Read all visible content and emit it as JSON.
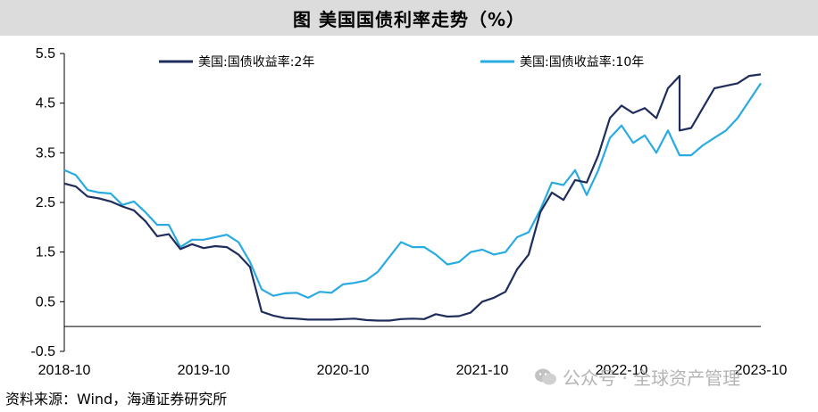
{
  "header": {
    "title": "图  美国国债利率走势（%）"
  },
  "footer": {
    "source": "资料来源：Wind，海通证券研究所"
  },
  "watermark": {
    "text": "公众号 · 全球资产管理",
    "icon": "wechat-icon"
  },
  "chart_data": {
    "type": "line",
    "title": "图  美国国债利率走势（%）",
    "xlabel": "",
    "ylabel": "",
    "ylim": [
      -0.5,
      5.5
    ],
    "yticks": [
      "5.5",
      "4.5",
      "3.5",
      "2.5",
      "1.5",
      "0.5",
      "-0.5"
    ],
    "ytick_values": [
      5.5,
      4.5,
      3.5,
      2.5,
      1.5,
      0.5,
      -0.5
    ],
    "xticks": [
      "2018-10",
      "2019-10",
      "2020-10",
      "2021-10",
      "2022-10",
      "2023-10"
    ],
    "xtick_dates": [
      "2018-10",
      "2019-10",
      "2020-10",
      "2021-10",
      "2022-10",
      "2023-10"
    ],
    "xlim": [
      "2018-10",
      "2023-10"
    ],
    "zero_line": true,
    "grid": false,
    "legend": "top",
    "series": [
      {
        "name": "美国:国债收益率:2年",
        "color": "#1f2d5c",
        "points": [
          [
            "2018-10",
            2.88
          ],
          [
            "2018-11",
            2.82
          ],
          [
            "2018-12",
            2.62
          ],
          [
            "2019-01",
            2.58
          ],
          [
            "2019-02",
            2.52
          ],
          [
            "2019-03",
            2.42
          ],
          [
            "2019-04",
            2.34
          ],
          [
            "2019-05",
            2.12
          ],
          [
            "2019-06",
            1.82
          ],
          [
            "2019-07",
            1.86
          ],
          [
            "2019-08",
            1.56
          ],
          [
            "2019-09",
            1.66
          ],
          [
            "2019-10",
            1.58
          ],
          [
            "2019-11",
            1.62
          ],
          [
            "2019-12",
            1.6
          ],
          [
            "2020-01",
            1.45
          ],
          [
            "2020-02",
            1.2
          ],
          [
            "2020-03",
            0.3
          ],
          [
            "2020-04",
            0.22
          ],
          [
            "2020-05",
            0.17
          ],
          [
            "2020-06",
            0.16
          ],
          [
            "2020-07",
            0.14
          ],
          [
            "2020-08",
            0.14
          ],
          [
            "2020-09",
            0.14
          ],
          [
            "2020-10",
            0.15
          ],
          [
            "2020-11",
            0.16
          ],
          [
            "2020-12",
            0.13
          ],
          [
            "2021-01",
            0.12
          ],
          [
            "2021-02",
            0.12
          ],
          [
            "2021-03",
            0.15
          ],
          [
            "2021-04",
            0.16
          ],
          [
            "2021-05",
            0.15
          ],
          [
            "2021-06",
            0.25
          ],
          [
            "2021-07",
            0.2
          ],
          [
            "2021-08",
            0.21
          ],
          [
            "2021-09",
            0.28
          ],
          [
            "2021-10",
            0.5
          ],
          [
            "2021-11",
            0.58
          ],
          [
            "2021-12",
            0.7
          ],
          [
            "2022-01",
            1.15
          ],
          [
            "2022-02",
            1.45
          ],
          [
            "2022-03",
            2.3
          ],
          [
            "2022-04",
            2.7
          ],
          [
            "2022-05",
            2.55
          ],
          [
            "2022-06",
            2.95
          ],
          [
            "2022-07",
            2.9
          ],
          [
            "2022-08",
            3.45
          ],
          [
            "2022-09",
            4.2
          ],
          [
            "2022-10",
            4.45
          ],
          [
            "2022-11",
            4.3
          ],
          [
            "2022-12",
            4.4
          ],
          [
            "2023-01",
            4.2
          ],
          [
            "2023-02",
            4.8
          ],
          [
            "2023-03",
            5.05
          ],
          [
            "2023-03",
            3.95
          ],
          [
            "2023-04",
            4.0
          ],
          [
            "2023-05",
            4.4
          ],
          [
            "2023-06",
            4.8
          ],
          [
            "2023-07",
            4.85
          ],
          [
            "2023-08",
            4.9
          ],
          [
            "2023-09",
            5.05
          ],
          [
            "2023-10",
            5.08
          ]
        ]
      },
      {
        "name": "美国:国债收益率:10年",
        "color": "#29abe2",
        "points": [
          [
            "2018-10",
            3.15
          ],
          [
            "2018-11",
            3.05
          ],
          [
            "2018-12",
            2.75
          ],
          [
            "2019-01",
            2.7
          ],
          [
            "2019-02",
            2.68
          ],
          [
            "2019-03",
            2.45
          ],
          [
            "2019-04",
            2.52
          ],
          [
            "2019-05",
            2.3
          ],
          [
            "2019-06",
            2.05
          ],
          [
            "2019-07",
            2.05
          ],
          [
            "2019-08",
            1.6
          ],
          [
            "2019-09",
            1.75
          ],
          [
            "2019-10",
            1.75
          ],
          [
            "2019-11",
            1.8
          ],
          [
            "2019-12",
            1.85
          ],
          [
            "2020-01",
            1.7
          ],
          [
            "2020-02",
            1.3
          ],
          [
            "2020-03",
            0.75
          ],
          [
            "2020-04",
            0.62
          ],
          [
            "2020-05",
            0.67
          ],
          [
            "2020-06",
            0.68
          ],
          [
            "2020-07",
            0.58
          ],
          [
            "2020-08",
            0.7
          ],
          [
            "2020-09",
            0.68
          ],
          [
            "2020-10",
            0.85
          ],
          [
            "2020-11",
            0.88
          ],
          [
            "2020-12",
            0.93
          ],
          [
            "2021-01",
            1.1
          ],
          [
            "2021-02",
            1.4
          ],
          [
            "2021-03",
            1.7
          ],
          [
            "2021-04",
            1.6
          ],
          [
            "2021-05",
            1.6
          ],
          [
            "2021-06",
            1.45
          ],
          [
            "2021-07",
            1.25
          ],
          [
            "2021-08",
            1.3
          ],
          [
            "2021-09",
            1.5
          ],
          [
            "2021-10",
            1.55
          ],
          [
            "2021-11",
            1.45
          ],
          [
            "2021-12",
            1.5
          ],
          [
            "2022-01",
            1.8
          ],
          [
            "2022-02",
            1.9
          ],
          [
            "2022-03",
            2.35
          ],
          [
            "2022-04",
            2.9
          ],
          [
            "2022-05",
            2.85
          ],
          [
            "2022-06",
            3.15
          ],
          [
            "2022-07",
            2.65
          ],
          [
            "2022-08",
            3.15
          ],
          [
            "2022-09",
            3.8
          ],
          [
            "2022-10",
            4.05
          ],
          [
            "2022-11",
            3.7
          ],
          [
            "2022-12",
            3.85
          ],
          [
            "2023-01",
            3.5
          ],
          [
            "2023-02",
            3.95
          ],
          [
            "2023-03",
            3.45
          ],
          [
            "2023-04",
            3.45
          ],
          [
            "2023-05",
            3.65
          ],
          [
            "2023-06",
            3.8
          ],
          [
            "2023-07",
            3.95
          ],
          [
            "2023-08",
            4.2
          ],
          [
            "2023-09",
            4.55
          ],
          [
            "2023-10",
            4.9
          ]
        ]
      }
    ]
  }
}
